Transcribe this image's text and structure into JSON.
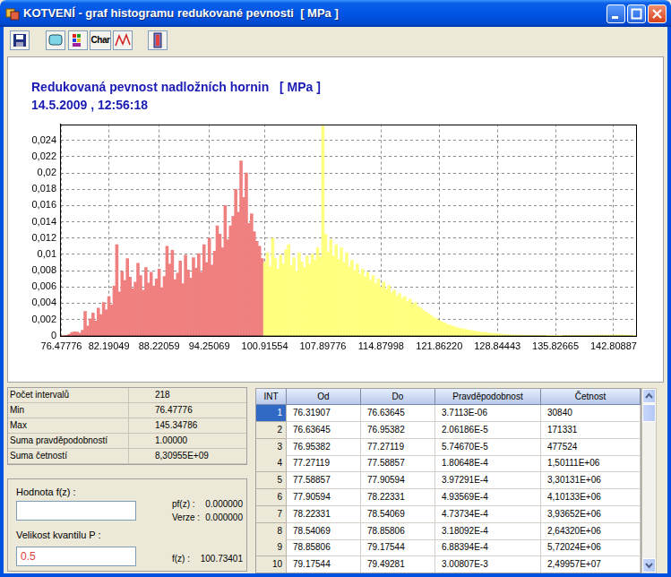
{
  "window": {
    "title": "KOTVENÍ - graf histogramu redukované pevnosti  [ MPa ]",
    "toolbar": [
      "Char"
    ]
  },
  "chart_data": {
    "type": "bar",
    "title": "Redukovaná pevnost nadložních hornin   [ MPa ]",
    "subtitle": "14.5.2009 , 12:56:18",
    "categories": [
      "76.47776",
      null,
      null,
      null,
      null,
      null,
      null,
      null,
      null,
      null,
      null,
      null,
      null,
      null,
      null,
      null,
      null,
      null,
      "82.19049",
      null,
      null,
      null,
      null,
      null,
      null,
      null,
      null,
      null,
      null,
      null,
      null,
      null,
      null,
      null,
      null,
      null,
      null,
      "88.22059",
      null,
      null,
      null,
      null,
      null,
      null,
      null,
      null,
      null,
      null,
      null,
      null,
      null,
      null,
      null,
      null,
      null,
      null,
      "94.25069",
      null,
      null,
      null,
      null,
      null,
      null,
      null,
      null,
      null,
      null,
      null,
      null,
      null,
      null,
      null,
      null,
      null,
      null,
      null,
      null,
      "100.91554",
      null,
      null,
      null,
      null,
      null,
      null,
      null,
      null,
      null,
      null,
      null,
      null,
      null,
      null,
      null,
      null,
      null,
      null,
      null,
      null,
      null,
      "107.89776",
      null,
      null,
      null,
      null,
      null,
      null,
      null,
      null,
      null,
      null,
      null,
      null,
      null,
      null,
      null,
      null,
      null,
      null,
      null,
      null,
      null,
      "114.87998",
      null,
      null,
      null,
      null,
      null,
      null,
      null,
      null,
      null,
      null,
      null,
      null,
      null,
      null,
      null,
      null,
      null,
      null,
      null,
      null,
      null,
      "121.86220",
      null,
      null,
      null,
      null,
      null,
      null,
      null,
      null,
      null,
      null,
      null,
      null,
      null,
      null,
      null,
      null,
      null,
      null,
      null,
      null,
      null,
      "128.84443",
      null,
      null,
      null,
      null,
      null,
      null,
      null,
      null,
      null,
      null,
      null,
      null,
      null,
      null,
      null,
      null,
      null,
      null,
      null,
      null,
      null,
      "135.82665",
      null,
      null,
      null,
      null,
      null,
      null,
      null,
      null,
      null,
      null,
      null,
      null,
      null,
      null,
      null,
      null,
      null,
      null,
      null,
      null,
      null,
      "142.80887",
      null,
      null,
      null,
      null,
      null,
      null,
      null,
      null
    ],
    "values": [
      3.7113e-06,
      2.06186e-05,
      5.7467e-05,
      0.000180648,
      0.000397291,
      0.000493569,
      0.000473734,
      0.000318092,
      0.000688394,
      0.00300807,
      0.0012,
      0.0021,
      0.0028,
      0.0018,
      0.0034,
      0.0026,
      0.0041,
      0.0032,
      0.0048,
      0.0038,
      0.0061,
      0.0112,
      0.0054,
      0.0079,
      0.0068,
      0.0095,
      0.0072,
      0.0058,
      0.0066,
      0.0089,
      0.0074,
      0.0056,
      0.0084,
      0.0065,
      0.0078,
      0.0061,
      0.007,
      0.0082,
      0.0059,
      0.0073,
      0.011,
      0.0088,
      0.0105,
      0.0069,
      0.0077,
      0.0092,
      0.0064,
      0.0099,
      0.0081,
      0.0071,
      0.0096,
      0.0083,
      0.0101,
      0.0078,
      0.0112,
      0.009,
      0.012,
      0.0087,
      0.0104,
      0.0135,
      0.0125,
      0.0108,
      0.016,
      0.0118,
      0.0135,
      0.0147,
      0.018,
      0.0152,
      0.0215,
      0.017,
      0.02,
      0.0138,
      0.015,
      0.0128,
      0.0116,
      0.011,
      0.0095,
      0.009,
      0.0102,
      0.0085,
      0.012,
      0.0095,
      0.0082,
      0.0099,
      0.0088,
      0.0106,
      0.0112,
      0.0086,
      0.0096,
      0.0079,
      0.0102,
      0.0091,
      0.0084,
      0.0098,
      0.0088,
      0.01,
      0.0093,
      0.0108,
      0.0097,
      0.026,
      0.0125,
      0.0103,
      0.0118,
      0.0098,
      0.0112,
      0.0094,
      0.0108,
      0.009,
      0.0102,
      0.0085,
      0.0093,
      0.008,
      0.0088,
      0.0076,
      0.0082,
      0.0072,
      0.0078,
      0.0068,
      0.0074,
      0.0064,
      0.007,
      0.006,
      0.0066,
      0.0057,
      0.0062,
      0.0053,
      0.0056,
      0.0049,
      0.0052,
      0.0046,
      0.0048,
      0.0042,
      0.0045,
      0.0039,
      0.0041,
      0.0036,
      0.0034,
      0.0031,
      0.0029,
      0.0027,
      0.0025,
      0.0022,
      0.0021,
      0.0019,
      0.0017,
      0.0016,
      0.0014,
      0.0013,
      0.0012,
      0.0011,
      0.001,
      0.0009,
      0.00085,
      0.0008,
      0.0007,
      0.00065,
      0.0006,
      0.00055,
      0.0005,
      0.00045,
      0.0004,
      0.00038,
      0.00034,
      0.0003,
      0.00027,
      0.00024,
      0.00021,
      0.00019,
      0.00017,
      0.00015,
      0.00013,
      0.00012,
      0.0001,
      9e-05,
      8e-05,
      7e-05,
      6e-05,
      5e-05,
      5e-05,
      4e-05,
      4e-05,
      3e-05,
      3e-05,
      3e-05,
      2e-05,
      2e-05,
      2e-05,
      2e-05,
      2e-05,
      2e-05,
      3e-05,
      3e-05,
      3e-05,
      4e-05,
      4e-05,
      4e-05,
      5e-05,
      5e-05,
      5e-05,
      6e-05,
      6e-05,
      6e-05,
      7e-05,
      7e-05,
      8e-05,
      8e-05,
      8e-05,
      9e-05,
      9e-05,
      0.0001,
      0.0001,
      0.0001,
      0.0001,
      9e-05,
      8e-05,
      6e-05,
      4e-05,
      2e-05
    ],
    "colors": [
      "#f08080",
      "#f08080",
      "#f08080",
      "#f08080",
      "#f08080",
      "#f08080",
      "#f08080",
      "#f08080",
      "#f08080",
      "#f08080",
      "#f08080",
      "#f08080",
      "#f08080",
      "#f08080",
      "#f08080",
      "#f08080",
      "#f08080",
      "#f08080",
      "#f08080",
      "#f08080",
      "#f08080",
      "#f08080",
      "#f08080",
      "#f08080",
      "#f08080",
      "#f08080",
      "#f08080",
      "#f08080",
      "#f08080",
      "#f08080",
      "#f08080",
      "#f08080",
      "#f08080",
      "#f08080",
      "#f08080",
      "#f08080",
      "#f08080",
      "#f08080",
      "#f08080",
      "#f08080",
      "#f08080",
      "#f08080",
      "#f08080",
      "#f08080",
      "#f08080",
      "#f08080",
      "#f08080",
      "#f08080",
      "#f08080",
      "#f08080",
      "#f08080",
      "#f08080",
      "#f08080",
      "#f08080",
      "#f08080",
      "#f08080",
      "#f08080",
      "#f08080",
      "#f08080",
      "#f08080",
      "#f08080",
      "#f08080",
      "#f08080",
      "#f08080",
      "#f08080",
      "#f08080",
      "#f08080",
      "#f08080",
      "#f08080",
      "#f08080",
      "#f08080",
      "#f08080",
      "#f08080",
      "#f08080",
      "#f08080",
      "#f08080",
      "#f08080",
      "#ffff80",
      "#ffff80",
      "#ffff80",
      "#ffff80",
      "#ffff80",
      "#ffff80",
      "#ffff80",
      "#ffff80",
      "#ffff80",
      "#ffff80",
      "#ffff80",
      "#ffff80",
      "#ffff80",
      "#ffff80",
      "#ffff80",
      "#ffff80",
      "#ffff80",
      "#ffff80",
      "#ffff80",
      "#ffff80",
      "#ffff80",
      "#ffff80",
      "#ffff80",
      "#ffff80",
      "#ffff80",
      "#ffff80",
      "#ffff80",
      "#ffff80",
      "#ffff80",
      "#ffff80",
      "#ffff80",
      "#ffff80",
      "#ffff80",
      "#ffff80",
      "#ffff80",
      "#ffff80",
      "#ffff80",
      "#ffff80",
      "#ffff80",
      "#ffff80",
      "#ffff80",
      "#ffff80",
      "#ffff80",
      "#ffff80",
      "#ffff80",
      "#ffff80",
      "#ffff80",
      "#ffff80",
      "#ffff80",
      "#ffff80",
      "#ffff80",
      "#ffff80",
      "#ffff80",
      "#ffff80",
      "#ffff80",
      "#ffff80",
      "#ffff80",
      "#ffff80",
      "#ffff80",
      "#ffff80",
      "#ffff80",
      "#ffff80",
      "#ffff80",
      "#ffff80",
      "#ffff80",
      "#ffff80",
      "#ffff80",
      "#ffff80",
      "#ffff80",
      "#ffff80",
      "#ffff80",
      "#ffff80",
      "#ffff80",
      "#ffff80",
      "#ffff80",
      "#ffff80",
      "#ffff80",
      "#ffff80",
      "#ffff80",
      "#ffff80",
      "#ffff80",
      "#ffff80",
      "#ffff80",
      "#ffff80",
      "#ffff80",
      "#ffff80",
      "#ffff80",
      "#ffff80",
      "#ffff80",
      "#ffff80",
      "#ffff80",
      "#ffff80",
      "#ffff80",
      "#ffff80",
      "#ffff80",
      "#ffff80",
      "#ffff80",
      "#ffff80",
      "#ffff80",
      "#ffff80",
      "#ffff80",
      "#ffff80",
      "#ffff80",
      "#ffff80",
      "#ffff80",
      "#ffff80",
      "#ffff80",
      "#ffff80",
      "#ffff80",
      "#ffff80",
      "#ffff80",
      "#ffff80",
      "#ffff80",
      "#ffff80",
      "#ffff80",
      "#ffff80",
      "#ffff80",
      "#ffff80",
      "#ffff80",
      "#ffff80",
      "#ffff80",
      "#ffff80",
      "#ffff80",
      "#ffff80",
      "#ffff80",
      "#ffff80",
      "#ffff80",
      "#ffff80",
      "#ffff80",
      "#ffff80",
      "#ffff80",
      "#ffff80",
      "#ffff80",
      "#ffff80",
      "#ffff80",
      "#ffff80",
      "#ffff80",
      "#ffff80",
      "#ffff80",
      "#ffff80",
      "#ffff80"
    ],
    "ylim": [
      0,
      0.026
    ],
    "yticks": [
      0,
      {
        "value": 0.002,
        "label": "0,002"
      },
      {
        "value": 0.004,
        "label": "0,004"
      },
      {
        "value": 0.006,
        "label": "0,006"
      },
      {
        "value": 0.008,
        "label": "0,008"
      },
      {
        "value": 0.01,
        "label": "0,01"
      },
      {
        "value": 0.012,
        "label": "0,012"
      },
      {
        "value": 0.014,
        "label": "0,014"
      },
      {
        "value": 0.016,
        "label": "0,016"
      },
      {
        "value": 0.018,
        "label": "0,018"
      },
      {
        "value": 0.02,
        "label": "0,02"
      },
      {
        "value": 0.022,
        "label": "0,022"
      },
      {
        "value": 0.024,
        "label": "0,024"
      }
    ],
    "grid": true
  },
  "stats": [
    [
      "Počet intervalů",
      "218"
    ],
    [
      "Min",
      "76.47776"
    ],
    [
      "Max",
      "145.34786"
    ],
    [
      "Suma pravděpodobností",
      "1.00000"
    ],
    [
      "Suma četností",
      "8,30955E+09"
    ]
  ],
  "quantile_panel": {
    "value_label": "Hodnota f(z) :",
    "pf_label": "pf(z) :",
    "pf": "0.000000",
    "version_label": "Verze :",
    "version": "0.000000",
    "p_label": "Velikost kvantilu P :",
    "p_input": "0.5",
    "fz_label": "f(z) :",
    "fz": "100.73401"
  },
  "table": {
    "columns": [
      "INT",
      "Od",
      "Do",
      "Pravděpodobnost",
      "Četnost"
    ],
    "rows": [
      [
        "1",
        "76.31907",
        "76.63645",
        "3.7113E-06",
        "30840"
      ],
      [
        "2",
        "76.63645",
        "76.95382",
        "2.06186E-5",
        "171331"
      ],
      [
        "3",
        "76.95382",
        "77.27119",
        "5.74670E-5",
        "477524"
      ],
      [
        "4",
        "77.27119",
        "77.58857",
        "1.80648E-4",
        "1,50111E+06"
      ],
      [
        "5",
        "77.58857",
        "77.90594",
        "3.97291E-4",
        "3,30131E+06"
      ],
      [
        "6",
        "77.90594",
        "78.22331",
        "4.93569E-4",
        "4,10133E+06"
      ],
      [
        "7",
        "78.22331",
        "78.54069",
        "4.73734E-4",
        "3,93652E+06"
      ],
      [
        "8",
        "78.54069",
        "78.85806",
        "3.18092E-4",
        "2,64320E+06"
      ],
      [
        "9",
        "78.85806",
        "79.17544",
        "6.88394E-4",
        "5,72024E+06"
      ],
      [
        "10",
        "79.17544",
        "79.49281",
        "3.00807E-3",
        "2,49957E+07"
      ]
    ]
  }
}
